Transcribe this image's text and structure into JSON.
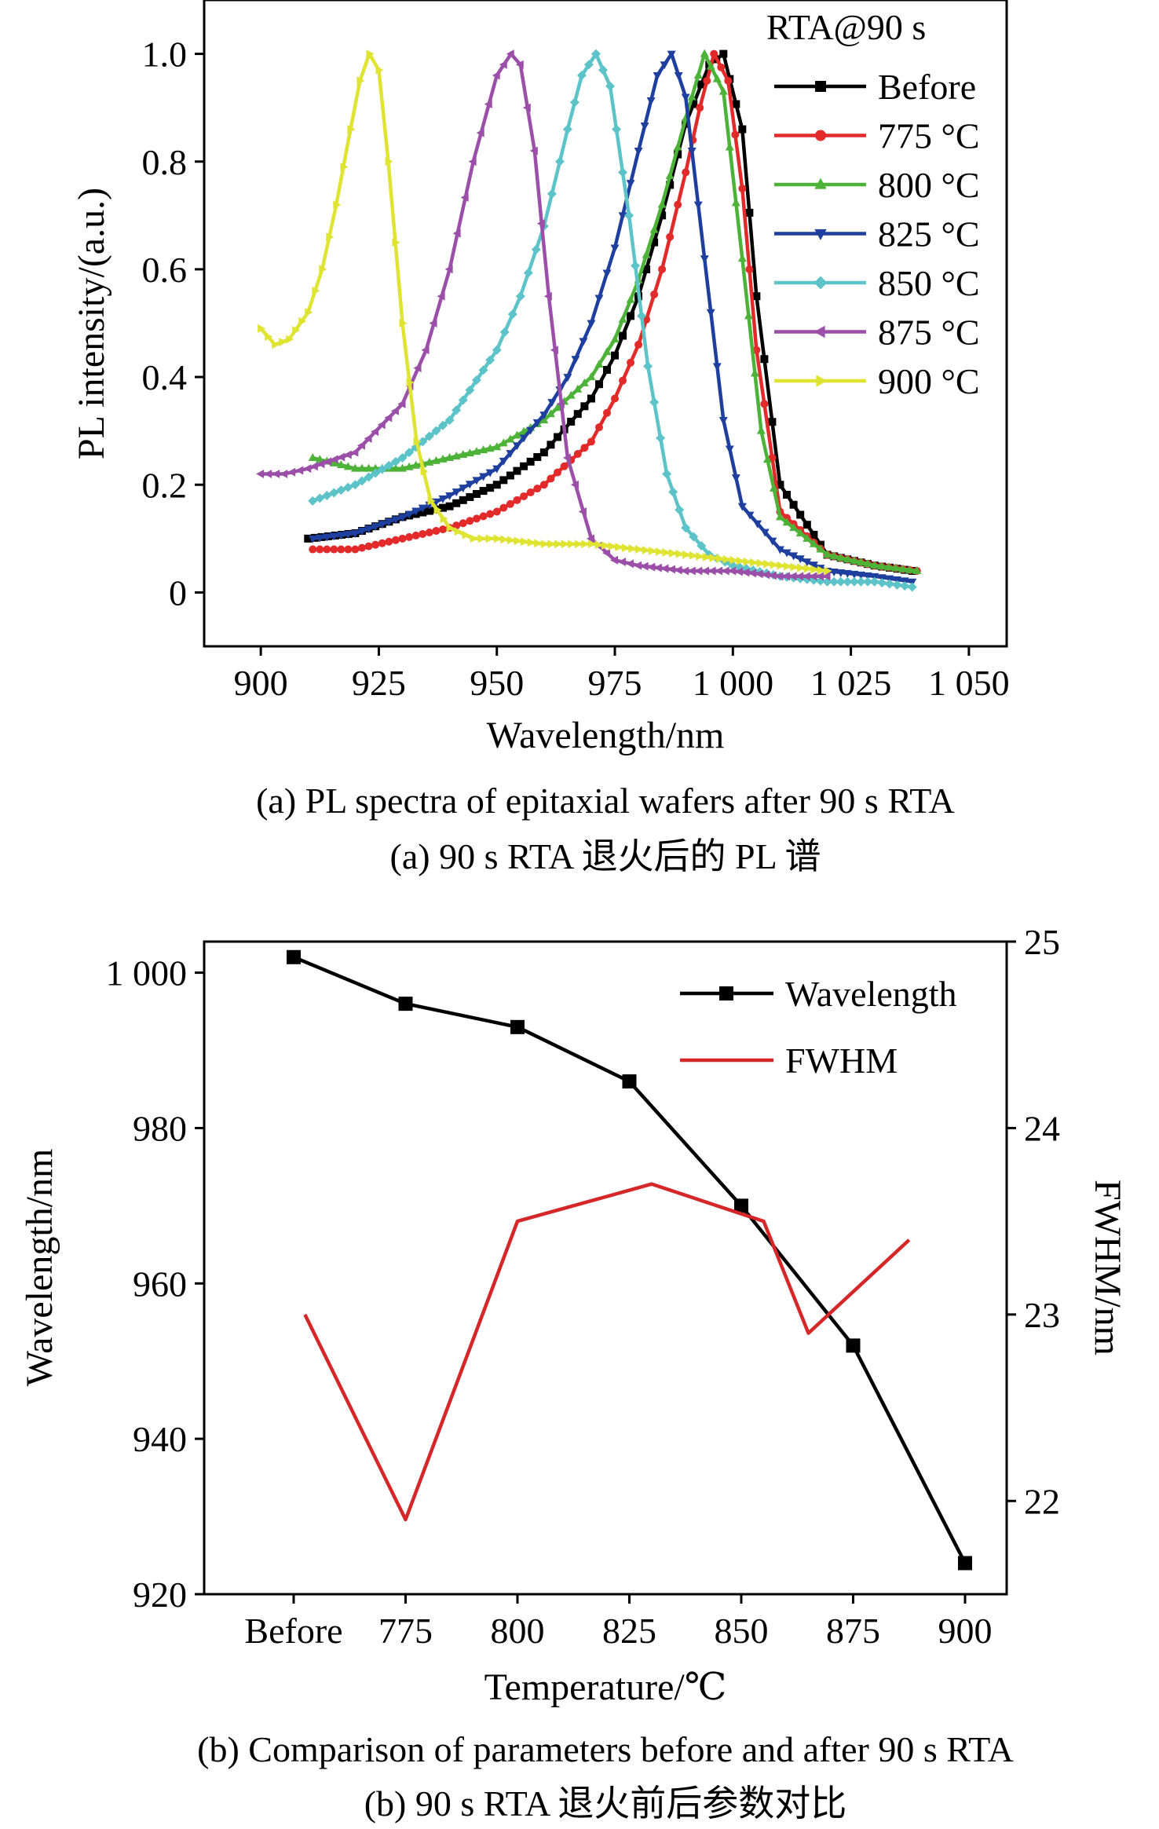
{
  "chart_data": [
    {
      "type": "line",
      "panel": "a",
      "xlabel": "Wavelength/nm",
      "ylabel": "PL intensity/(a.u.)",
      "xlim": [
        888,
        1058
      ],
      "ylim": [
        -0.1,
        1.1
      ],
      "x_ticks": [
        900,
        925,
        950,
        975,
        1000,
        1025,
        1050
      ],
      "x_tick_labels": [
        "900",
        "925",
        "950",
        "975",
        "1 000",
        "1 025",
        "1 050"
      ],
      "y_ticks": [
        0,
        0.2,
        0.4,
        0.6,
        0.8,
        1.0
      ],
      "y_tick_labels": [
        "0",
        "0.2",
        "0.4",
        "0.6",
        "0.8",
        "1.0"
      ],
      "legend_title": "RTA@90  s",
      "legend_position": "top-right",
      "grid": false,
      "series": [
        {
          "name": "Before",
          "color": "#000000",
          "marker": "square",
          "x": [
            910,
            920,
            930,
            940,
            950,
            960,
            970,
            975,
            980,
            985,
            990,
            995,
            998,
            1002,
            1005,
            1010,
            1020,
            1030,
            1038
          ],
          "y": [
            0.1,
            0.11,
            0.14,
            0.16,
            0.2,
            0.26,
            0.36,
            0.44,
            0.55,
            0.7,
            0.87,
            0.98,
            1.0,
            0.86,
            0.55,
            0.2,
            0.07,
            0.05,
            0.04
          ]
        },
        {
          "name": "775 °C",
          "color": "#e32a2a",
          "marker": "circle",
          "x": [
            911,
            920,
            930,
            940,
            950,
            960,
            970,
            975,
            980,
            985,
            990,
            993,
            996,
            999,
            1002,
            1005,
            1010,
            1020,
            1030,
            1039
          ],
          "y": [
            0.08,
            0.08,
            0.1,
            0.12,
            0.15,
            0.2,
            0.28,
            0.36,
            0.46,
            0.6,
            0.78,
            0.9,
            1.0,
            0.95,
            0.75,
            0.45,
            0.15,
            0.07,
            0.05,
            0.04
          ]
        },
        {
          "name": "800 °C",
          "color": "#4cb238",
          "marker": "triangle-up",
          "x": [
            911,
            920,
            930,
            940,
            950,
            960,
            970,
            975,
            980,
            985,
            990,
            994,
            998,
            1002,
            1006,
            1010,
            1020,
            1030,
            1039
          ],
          "y": [
            0.25,
            0.23,
            0.23,
            0.25,
            0.27,
            0.32,
            0.4,
            0.47,
            0.58,
            0.72,
            0.88,
            1.0,
            0.93,
            0.62,
            0.3,
            0.14,
            0.07,
            0.05,
            0.04
          ]
        },
        {
          "name": "825 °C",
          "color": "#1f3f9e",
          "marker": "triangle-down",
          "x": [
            911,
            920,
            930,
            940,
            950,
            960,
            965,
            970,
            975,
            980,
            984,
            987,
            990,
            994,
            998,
            1002,
            1010,
            1020,
            1030,
            1038
          ],
          "y": [
            0.1,
            0.11,
            0.14,
            0.18,
            0.23,
            0.33,
            0.4,
            0.5,
            0.64,
            0.82,
            0.96,
            1.0,
            0.92,
            0.62,
            0.32,
            0.16,
            0.08,
            0.04,
            0.03,
            0.02
          ]
        },
        {
          "name": "850 °C",
          "color": "#5cc3c8",
          "marker": "diamond",
          "x": [
            911,
            920,
            930,
            940,
            950,
            955,
            960,
            965,
            968,
            971,
            974,
            978,
            982,
            986,
            990,
            995,
            1000,
            1010,
            1020,
            1030,
            1038
          ],
          "y": [
            0.17,
            0.2,
            0.25,
            0.32,
            0.45,
            0.55,
            0.68,
            0.86,
            0.96,
            1.0,
            0.94,
            0.7,
            0.42,
            0.22,
            0.12,
            0.07,
            0.05,
            0.03,
            0.02,
            0.02,
            0.01
          ]
        },
        {
          "name": "875 °C",
          "color": "#9b4fa8",
          "marker": "triangle-left",
          "x": [
            900,
            905,
            910,
            920,
            930,
            935,
            940,
            945,
            950,
            953,
            955,
            958,
            961,
            965,
            970,
            975,
            980,
            990,
            1000,
            1010,
            1020
          ],
          "y": [
            0.22,
            0.22,
            0.23,
            0.26,
            0.35,
            0.45,
            0.6,
            0.8,
            0.96,
            1.0,
            0.98,
            0.82,
            0.55,
            0.25,
            0.1,
            0.06,
            0.05,
            0.04,
            0.04,
            0.03,
            0.03
          ]
        },
        {
          "name": "900 °C",
          "color": "#dfe332",
          "marker": "triangle-right",
          "x": [
            900,
            903,
            906,
            910,
            913,
            916,
            919,
            921,
            923,
            925,
            927,
            930,
            933,
            936,
            940,
            945,
            950,
            960,
            970,
            980,
            990,
            1000,
            1010,
            1020
          ],
          "y": [
            0.49,
            0.46,
            0.47,
            0.52,
            0.6,
            0.72,
            0.86,
            0.95,
            1.0,
            0.97,
            0.8,
            0.5,
            0.28,
            0.17,
            0.12,
            0.1,
            0.1,
            0.09,
            0.09,
            0.08,
            0.07,
            0.06,
            0.05,
            0.04
          ]
        }
      ]
    },
    {
      "type": "line",
      "panel": "b",
      "xlabel": "Temperature/℃",
      "ylabel": "Wavelength/nm",
      "ylabel_right": "FWHM/nm",
      "categories": [
        "Before",
        "775",
        "800",
        "825",
        "850",
        "875",
        "900"
      ],
      "ylim": [
        920,
        1004
      ],
      "y_ticks": [
        920,
        940,
        960,
        980,
        1000
      ],
      "y_tick_labels": [
        "920",
        "940",
        "960",
        "980",
        "1 000"
      ],
      "ylim_right": [
        21.5,
        25
      ],
      "y_right_ticks": [
        22,
        23,
        24,
        25
      ],
      "y_right_tick_labels": [
        "22",
        "23",
        "24",
        "25"
      ],
      "legend_position": "top-right",
      "grid": false,
      "series": [
        {
          "name": "Wavelength",
          "color": "#000000",
          "marker": "square",
          "axis": "left",
          "x": [
            0,
            1,
            2,
            3,
            4,
            5,
            6
          ],
          "y": [
            1002,
            996,
            993,
            986,
            970,
            952,
            924
          ]
        },
        {
          "name": "FWHM",
          "color": "#d62728",
          "marker": "none",
          "axis": "right",
          "x": [
            0.1,
            1,
            2,
            3.2,
            4.2,
            4.6,
            5.5
          ],
          "y": [
            23.0,
            21.9,
            23.5,
            23.7,
            23.5,
            22.9,
            23.4
          ]
        }
      ]
    }
  ],
  "captions": {
    "a_en": "(a) PL spectra of epitaxial wafers after 90 s RTA",
    "a_zh": "(a) 90 s RTA 退火后的 PL 谱",
    "b_en": "(b) Comparison of parameters before and after 90 s RTA",
    "b_zh": "(b) 90 s RTA 退火前后参数对比"
  }
}
